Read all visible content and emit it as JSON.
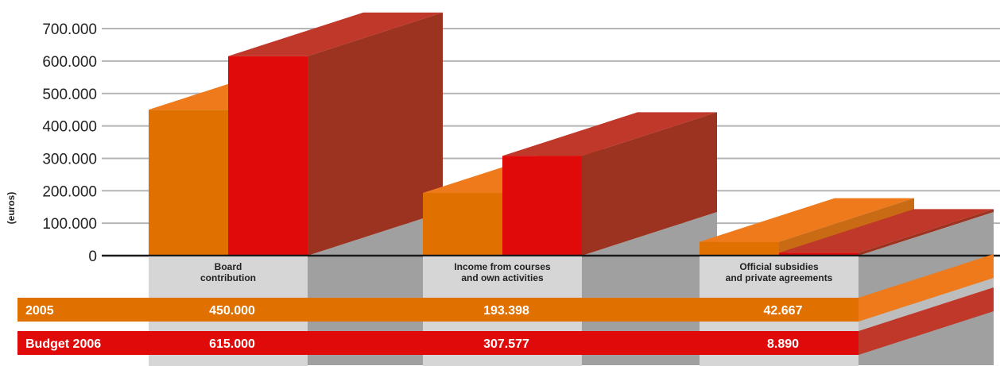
{
  "chart_data": {
    "type": "bar",
    "ylabel": "(euros)",
    "ylim": [
      0,
      700000
    ],
    "yticks": [
      "0",
      "100.000",
      "200.000",
      "300.000",
      "400.000",
      "500.000",
      "600.000",
      "700.000"
    ],
    "ytick_values": [
      0,
      100000,
      200000,
      300000,
      400000,
      500000,
      600000,
      700000
    ],
    "grid": true,
    "categories": [
      [
        "Board",
        "contribution"
      ],
      [
        "Income from courses",
        "and own activities"
      ],
      [
        "Official subsidies",
        "and private agreements"
      ]
    ],
    "series": [
      {
        "name": "2005",
        "values": [
          450000,
          193398,
          42667
        ],
        "labels": [
          "450.000",
          "193.398",
          "42.667"
        ]
      },
      {
        "name": "Budget 2006",
        "values": [
          615000,
          307577,
          8890
        ],
        "labels": [
          "615.000",
          "307.577",
          "8.890"
        ]
      }
    ],
    "legend": "table below chart"
  },
  "colors": {
    "series_2005": "#e07000",
    "series_2005_top": "#ee7a1c",
    "series_2006": "#e00a0a",
    "series_2006_side": "#9c3220",
    "series_2006_top": "#c0382a",
    "grid": "#b5b5b5",
    "floor": "#a0a0a0",
    "label_panel": "#d6d6d6"
  }
}
